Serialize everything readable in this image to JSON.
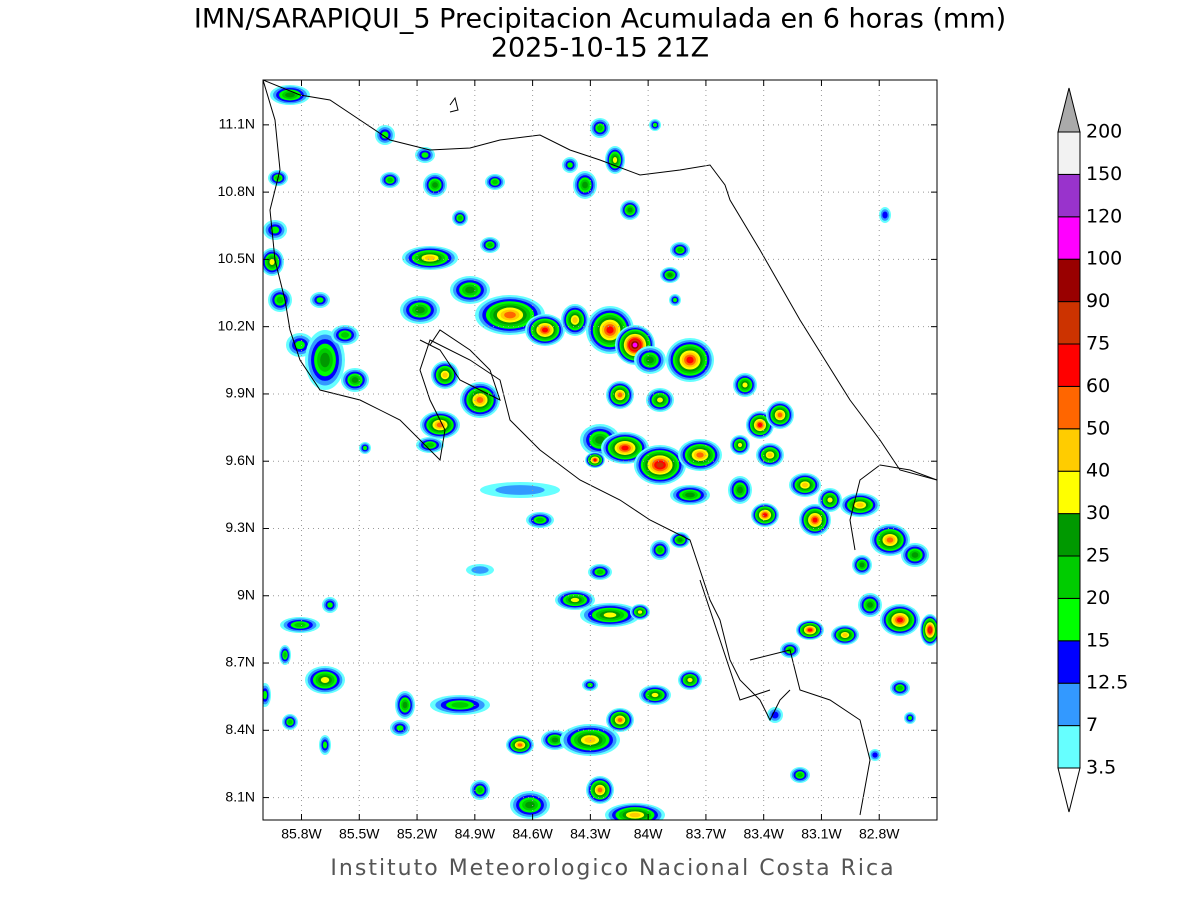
{
  "map": {
    "title": "IMN/SARAPIQUI_5 Precipitacion Acumulada en 6 horas (mm)",
    "subtitle": "2025-10-15 21Z",
    "lat_range": [
      8.0,
      11.3
    ],
    "lon_range": [
      -86.0,
      -82.5
    ],
    "lat_ticks": [
      {
        "value": 8.1,
        "label": "8.1N"
      },
      {
        "value": 8.4,
        "label": "8.4N"
      },
      {
        "value": 8.7,
        "label": "8.7N"
      },
      {
        "value": 9.0,
        "label": "9N"
      },
      {
        "value": 9.3,
        "label": "9.3N"
      },
      {
        "value": 9.6,
        "label": "9.6N"
      },
      {
        "value": 9.9,
        "label": "9.9N"
      },
      {
        "value": 10.2,
        "label": "10.2N"
      },
      {
        "value": 10.5,
        "label": "10.5N"
      },
      {
        "value": 10.8,
        "label": "10.8N"
      },
      {
        "value": 11.1,
        "label": "11.1N"
      }
    ],
    "lon_ticks": [
      {
        "value": -85.8,
        "label": "85.8W"
      },
      {
        "value": -85.5,
        "label": "85.5W"
      },
      {
        "value": -85.2,
        "label": "85.2W"
      },
      {
        "value": -84.9,
        "label": "84.9W"
      },
      {
        "value": -84.6,
        "label": "84.6W"
      },
      {
        "value": -84.3,
        "label": "84.3W"
      },
      {
        "value": -84.0,
        "label": "84W"
      },
      {
        "value": -83.7,
        "label": "83.7W"
      },
      {
        "value": -83.4,
        "label": "83.4W"
      },
      {
        "value": -83.1,
        "label": "83.1W"
      },
      {
        "value": -82.8,
        "label": "82.8W"
      }
    ],
    "colorbar": {
      "levels": [
        3.5,
        7,
        12.5,
        15,
        20,
        25,
        30,
        40,
        50,
        60,
        75,
        90,
        100,
        120,
        150,
        200
      ],
      "colors": [
        "#66ffff",
        "#3399ff",
        "#0000ff",
        "#00ff00",
        "#00cc00",
        "#009900",
        "#ffff00",
        "#ffcc00",
        "#ff6600",
        "#ff0000",
        "#cc3300",
        "#990000",
        "#ff00ff",
        "#9933cc",
        "#f2f2f2"
      ],
      "over_color": "#aaaaaa",
      "under_color": "#ffffff"
    },
    "credit": "Instituto Meteorologico Nacional Costa Rica"
  }
}
